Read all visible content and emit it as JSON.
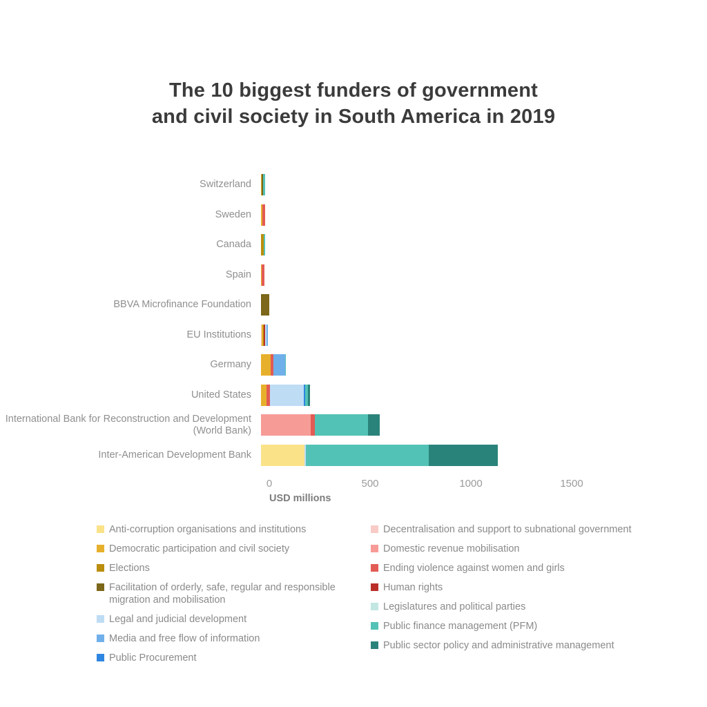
{
  "title": {
    "line1": "The 10 biggest funders of government",
    "line2": "and civil society in South America in 2019"
  },
  "axis": {
    "xlabel": "USD millions"
  },
  "palette": {
    "anti_corruption": "#fae289",
    "democratic_participation": "#e7b02c",
    "elections": "#bb8e0e",
    "facilitation_migration": "#7c671a",
    "legal_judicial": "#bfdcf5",
    "media_info": "#70b0ea",
    "public_procurement": "#2f86e2",
    "decentralisation": "#f8cbc6",
    "domestic_revenue": "#f79b97",
    "ending_violence": "#e25b54",
    "human_rights": "#b92f27",
    "legislatures": "#c2e7e2",
    "pfm": "#53c2b6",
    "public_sector_policy": "#2a837b"
  },
  "legend": {
    "left": [
      {
        "category_id": "anti_corruption",
        "label": "Anti-corruption organisations and institutions"
      },
      {
        "category_id": "democratic_participation",
        "label": "Democratic participation and civil society"
      },
      {
        "category_id": "elections",
        "label": "Elections"
      },
      {
        "category_id": "facilitation_migration",
        "label": "Facilitation of orderly, safe, regular and responsible migration and mobilisation"
      },
      {
        "category_id": "legal_judicial",
        "label": "Legal and judicial development"
      },
      {
        "category_id": "media_info",
        "label": "Media and free flow of information"
      },
      {
        "category_id": "public_procurement",
        "label": "Public Procurement"
      }
    ],
    "right": [
      {
        "category_id": "decentralisation",
        "label": "Decentralisation and support to subnational government"
      },
      {
        "category_id": "domestic_revenue",
        "label": "Domestic revenue mobilisation"
      },
      {
        "category_id": "ending_violence",
        "label": "Ending violence against women and girls"
      },
      {
        "category_id": "human_rights",
        "label": "Human rights"
      },
      {
        "category_id": "legislatures",
        "label": "Legislatures and political parties"
      },
      {
        "category_id": "pfm",
        "label": "Public finance management (PFM)"
      },
      {
        "category_id": "public_sector_policy",
        "label": "Public sector policy and administrative management"
      }
    ]
  },
  "chart_data": {
    "type": "bar",
    "orientation": "horizontal",
    "stacked": true,
    "title": "The 10 biggest funders of government and civil society in South America in 2019",
    "xlabel": "USD millions",
    "xlim": [
      0,
      1500
    ],
    "x_ticks": [
      0,
      500,
      1000,
      1500
    ],
    "grid": false,
    "legend_position": "bottom",
    "units": "USD millions",
    "funders": [
      {
        "name": "Switzerland",
        "total": 20,
        "segments": [
          {
            "category_id": "democratic_participation",
            "value": 5
          },
          {
            "category_id": "facilitation_migration",
            "value": 5
          },
          {
            "category_id": "pfm",
            "value": 10
          }
        ]
      },
      {
        "name": "Sweden",
        "total": 21,
        "segments": [
          {
            "category_id": "democratic_participation",
            "value": 7
          },
          {
            "category_id": "ending_violence",
            "value": 14
          }
        ]
      },
      {
        "name": "Canada",
        "total": 21,
        "segments": [
          {
            "category_id": "elections",
            "value": 14
          },
          {
            "category_id": "pfm",
            "value": 7
          }
        ]
      },
      {
        "name": "Spain",
        "total": 17,
        "segments": [
          {
            "category_id": "democratic_participation",
            "value": 3
          },
          {
            "category_id": "ending_violence",
            "value": 14
          }
        ]
      },
      {
        "name": "BBVA Microfinance Foundation",
        "total": 40,
        "segments": [
          {
            "category_id": "facilitation_migration",
            "value": 40
          }
        ]
      },
      {
        "name": "EU Institutions",
        "total": 34,
        "segments": [
          {
            "category_id": "decentralisation",
            "value": 3
          },
          {
            "category_id": "democratic_participation",
            "value": 8
          },
          {
            "category_id": "elections",
            "value": 4
          },
          {
            "category_id": "human_rights",
            "value": 7
          },
          {
            "category_id": "legal_judicial",
            "value": 5
          },
          {
            "category_id": "media_info",
            "value": 7
          }
        ]
      },
      {
        "name": "Germany",
        "total": 125,
        "segments": [
          {
            "category_id": "democratic_participation",
            "value": 48
          },
          {
            "category_id": "ending_violence",
            "value": 14
          },
          {
            "category_id": "media_info",
            "value": 58
          },
          {
            "category_id": "pfm",
            "value": 5
          }
        ]
      },
      {
        "name": "United States",
        "total": 244,
        "segments": [
          {
            "category_id": "democratic_participation",
            "value": 27
          },
          {
            "category_id": "ending_violence",
            "value": 17
          },
          {
            "category_id": "legal_judicial",
            "value": 170
          },
          {
            "category_id": "public_procurement",
            "value": 5
          },
          {
            "category_id": "pfm",
            "value": 15
          },
          {
            "category_id": "public_sector_policy",
            "value": 10
          }
        ]
      },
      {
        "name": "International Bank for Reconstruction and Development (World Bank)",
        "total": 589,
        "segments": [
          {
            "category_id": "domestic_revenue",
            "value": 246
          },
          {
            "category_id": "ending_violence",
            "value": 21
          },
          {
            "category_id": "pfm",
            "value": 264
          },
          {
            "category_id": "public_sector_policy",
            "value": 58
          }
        ]
      },
      {
        "name": "Inter-American Development Bank",
        "total": 1175,
        "segments": [
          {
            "category_id": "anti_corruption",
            "value": 216
          },
          {
            "category_id": "legal_judicial",
            "value": 7
          },
          {
            "category_id": "pfm",
            "value": 610
          },
          {
            "category_id": "public_sector_policy",
            "value": 342
          }
        ]
      }
    ]
  }
}
